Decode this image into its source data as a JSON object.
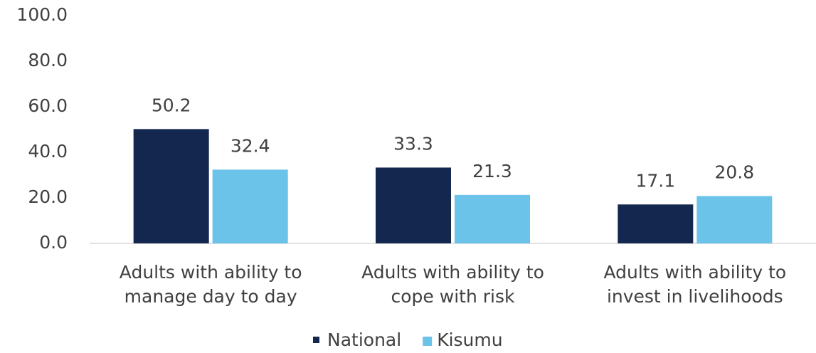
{
  "chart_data": {
    "type": "bar",
    "categories": [
      [
        "Adults with ability to",
        "manage day to day"
      ],
      [
        "Adults with ability to",
        "cope with risk"
      ],
      [
        "Adults with ability to",
        "invest in livelihoods"
      ]
    ],
    "series": [
      {
        "name": "National",
        "color": "#14274f",
        "values": [
          50.2,
          33.3,
          17.1
        ]
      },
      {
        "name": "Kisumu",
        "color": "#6bc3e9",
        "values": [
          32.4,
          21.3,
          20.8
        ]
      }
    ],
    "ylim": [
      0,
      100
    ],
    "yticks": [
      {
        "value": 0,
        "label": "0.0"
      },
      {
        "value": 20,
        "label": "20.0"
      },
      {
        "value": 40,
        "label": "40.0"
      },
      {
        "value": 60,
        "label": "60.0"
      },
      {
        "value": 80,
        "label": "80.0"
      },
      {
        "value": 100,
        "label": "100.0"
      }
    ],
    "legend": "bottom"
  }
}
